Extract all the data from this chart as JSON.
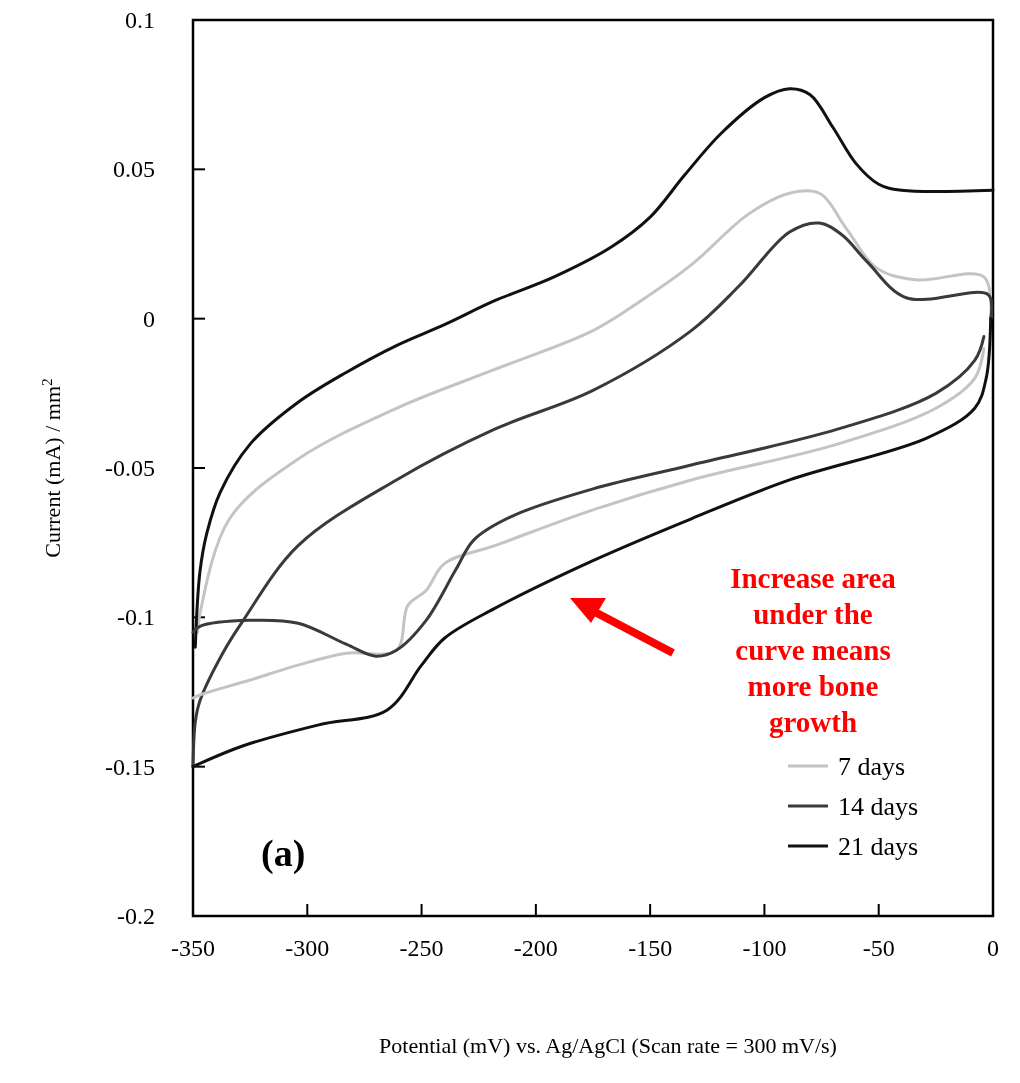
{
  "chart_data": {
    "type": "line",
    "xlabel": "Potential (mV) vs. Ag/AgCl (Scan rate = 300 mV/s)",
    "ylabel": "Current (mA) / mm$^{2}$",
    "xlim": [
      -350,
      0
    ],
    "xticks": [
      -350,
      -300,
      -250,
      -200,
      -150,
      -100,
      -50,
      0
    ],
    "ylim": [
      -0.2,
      0.1
    ],
    "yticks": [
      0.1,
      0.05,
      0,
      -0.05,
      -0.1,
      -0.15,
      -0.2
    ],
    "legend": "bottom right",
    "line_style": "solid",
    "annotations": [
      "(a)",
      "Increase area under the curve means more bone growth"
    ],
    "series": [
      {
        "name": "7 days",
        "color": "#c4c4c4",
        "x": [
          -348,
          -347,
          -334,
          -304,
          -261,
          -218,
          -175,
          -154,
          -132,
          -107,
          -89,
          -76,
          -64,
          -51,
          -34,
          -4,
          -1
        ],
        "values": [
          -0.105,
          -0.099,
          -0.067,
          -0.047,
          -0.03,
          -0.017,
          -0.004,
          0.006,
          0.018,
          0.035,
          0.042,
          0.042,
          0.03,
          0.017,
          0.013,
          0.014,
          0.0
        ]
      },
      {
        "name": "14 days",
        "color": "#3a3a3a",
        "x": [
          -350,
          -349,
          -347,
          -337,
          -328,
          -304,
          -261,
          -218,
          -175,
          -132,
          -111,
          -89,
          -76,
          -66,
          -55,
          -38,
          -2,
          -1
        ],
        "values": [
          -0.15,
          -0.135,
          -0.128,
          -0.112,
          -0.101,
          -0.076,
          -0.054,
          -0.037,
          -0.024,
          -0.004,
          0.011,
          0.029,
          0.032,
          0.028,
          0.019,
          0.007,
          0.008,
          0.0
        ]
      },
      {
        "name": "21 days",
        "color": "#111111",
        "x": [
          -349,
          -347,
          -344,
          -338,
          -325,
          -304,
          -283,
          -261,
          -240,
          -218,
          -192,
          -167,
          -150,
          -135,
          -119,
          -100,
          -89,
          -80,
          -70,
          -60,
          -50,
          -40,
          0
        ],
        "values": [
          -0.11,
          -0.085,
          -0.072,
          -0.058,
          -0.042,
          -0.028,
          -0.018,
          -0.009,
          -0.002,
          0.006,
          0.014,
          0.024,
          0.034,
          0.048,
          0.062,
          0.074,
          0.077,
          0.075,
          0.064,
          0.052,
          0.045,
          0.043,
          0.043
        ]
      },
      {
        "color": "#c4c4c4",
        "x": [
          -4,
          -8,
          -25,
          -68,
          -132,
          -175,
          -218,
          -240,
          -248,
          -256,
          -261,
          -283,
          -304,
          -325,
          -347,
          -350
        ],
        "values": [
          -0.01,
          -0.02,
          -0.03,
          -0.042,
          -0.054,
          -0.064,
          -0.076,
          -0.082,
          -0.091,
          -0.096,
          -0.111,
          -0.112,
          -0.116,
          -0.121,
          -0.126,
          -0.127
        ]
      },
      {
        "color": "#3a3a3a",
        "x": [
          -4,
          -8,
          -25,
          -68,
          -132,
          -175,
          -210,
          -227,
          -235,
          -248,
          -261,
          -270,
          -283,
          -304,
          -325,
          -347,
          -350
        ],
        "values": [
          -0.006,
          -0.014,
          -0.025,
          -0.037,
          -0.049,
          -0.057,
          -0.066,
          -0.074,
          -0.084,
          -0.101,
          -0.111,
          -0.113,
          -0.109,
          -0.102,
          -0.101,
          -0.103,
          -0.105
        ]
      },
      {
        "color": "#111111",
        "x": [
          -1,
          -3,
          -8,
          -29,
          -89,
          -132,
          -175,
          -218,
          -240,
          -250,
          -265,
          -295,
          -328,
          -350
        ],
        "values": [
          0.0,
          -0.02,
          -0.03,
          -0.04,
          -0.054,
          -0.067,
          -0.081,
          -0.097,
          -0.107,
          -0.116,
          -0.131,
          -0.136,
          -0.143,
          -0.15
        ]
      }
    ]
  }
}
